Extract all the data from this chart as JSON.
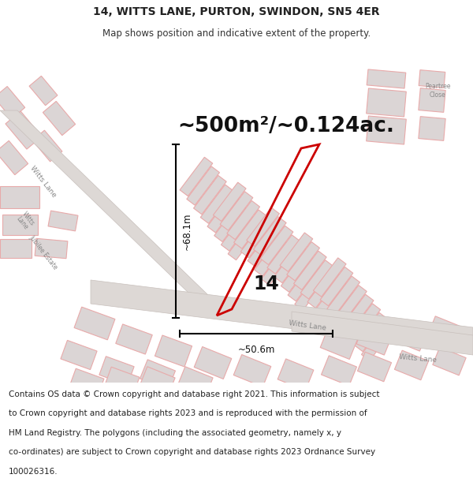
{
  "title": "14, WITTS LANE, PURTON, SWINDON, SN5 4ER",
  "subtitle": "Map shows position and indicative extent of the property.",
  "area_text": "~500m²/~0.124ac.",
  "label_14": "14",
  "dim_vertical": "~68.1m",
  "dim_horizontal": "~50.6m",
  "footer_lines": [
    "Contains OS data © Crown copyright and database right 2021. This information is subject",
    "to Crown copyright and database rights 2023 and is reproduced with the permission of",
    "HM Land Registry. The polygons (including the associated geometry, namely x, y",
    "co-ordinates) are subject to Crown copyright and database rights 2023 Ordnance Survey",
    "100026316."
  ],
  "bg_color": "#ffffff",
  "map_bg": "#f2eded",
  "road_fill": "#ddd8d5",
  "road_edge": "#c8c0bc",
  "building_fill": "#dbd5d5",
  "building_edge": "#e8aaaa",
  "highlight_color": "#cc0000",
  "label_color": "#888888",
  "title_fontsize": 10,
  "subtitle_fontsize": 8.5,
  "area_fontsize": 19,
  "label_fontsize": 17,
  "footer_fontsize": 7.5
}
